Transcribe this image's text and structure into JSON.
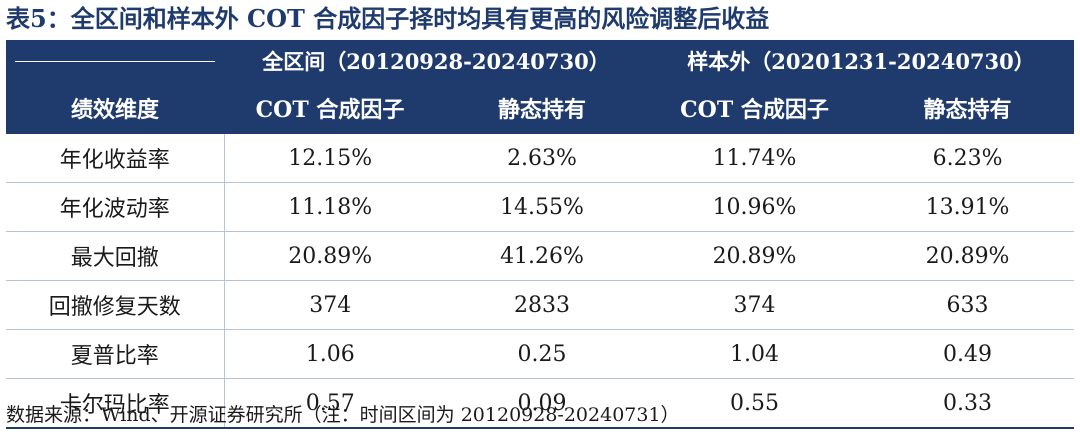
{
  "title": "表5：全区间和样本外 COT 合成因子择时均具有更高的风险调整后收益",
  "table": {
    "group_headers": [
      "全区间（20120928-20240730）",
      "样本外（20201231-20240730）"
    ],
    "column_headers": [
      "绩效维度",
      "COT 合成因子",
      "静态持有",
      "COT 合成因子",
      "静态持有"
    ],
    "rows": [
      [
        "年化收益率",
        "12.15%",
        "2.63%",
        "11.74%",
        "6.23%"
      ],
      [
        "年化波动率",
        "11.18%",
        "14.55%",
        "10.96%",
        "13.91%"
      ],
      [
        "最大回撤",
        "20.89%",
        "41.26%",
        "20.89%",
        "20.89%"
      ],
      [
        "回撤修复天数",
        "374",
        "2833",
        "374",
        "633"
      ],
      [
        "夏普比率",
        "1.06",
        "0.25",
        "1.04",
        "0.49"
      ],
      [
        "卡尔玛比率",
        "0.57",
        "0.09",
        "0.55",
        "0.33"
      ]
    ]
  },
  "source": "数据来源：Wind、开源证券研究所（注：时间区间为 20120928-20240731）",
  "colors": {
    "header_bg": "#1f3b6e",
    "header_text": "#ffffff",
    "title_text": "#1f3b6e",
    "grid_line": "#b9c3d3"
  }
}
